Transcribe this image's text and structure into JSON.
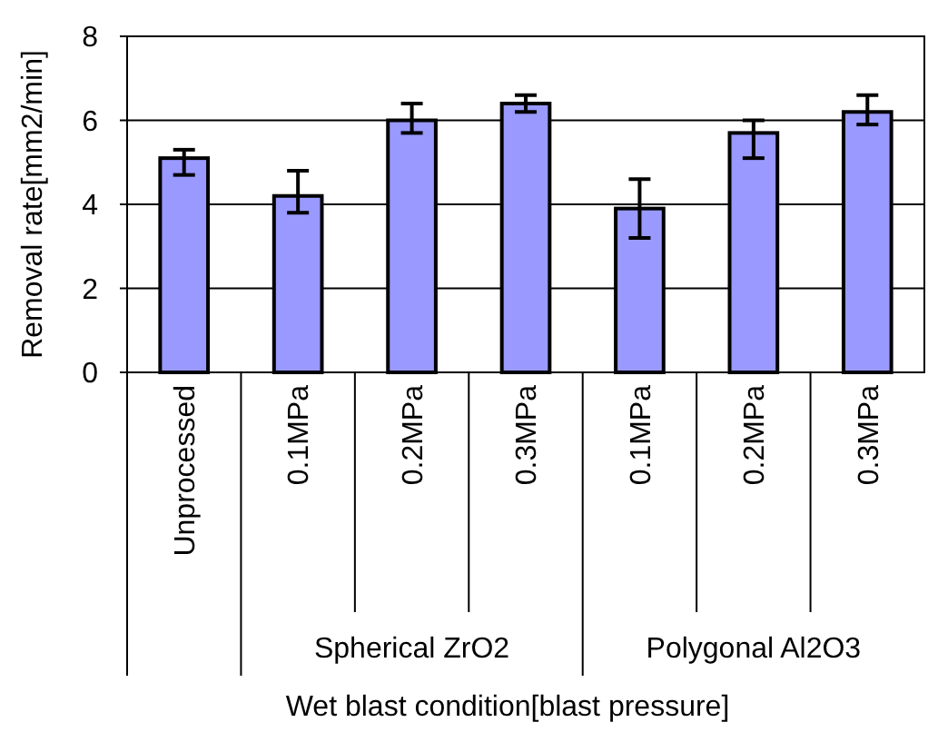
{
  "chart_data": {
    "type": "bar",
    "xlabel": "Wet blast condition[blast pressure]",
    "ylabel": "Removal rate[mm2/min]",
    "categories": [
      "Unprocessed",
      "0.1MPa",
      "0.2MPa",
      "0.3MPa",
      "0.1MPa",
      "0.2MPa",
      "0.3MPa"
    ],
    "values": [
      5.1,
      4.2,
      6.0,
      6.4,
      3.9,
      5.7,
      6.2
    ],
    "errors": [
      [
        4.7,
        5.3
      ],
      [
        3.8,
        4.8
      ],
      [
        5.7,
        6.4
      ],
      [
        6.2,
        6.6
      ],
      [
        3.2,
        4.6
      ],
      [
        5.1,
        6.0
      ],
      [
        5.9,
        6.6
      ]
    ],
    "color": "#9999ff",
    "ylim": [
      0,
      8
    ],
    "yticks": [
      0,
      2,
      4,
      6,
      8
    ],
    "grid": "y",
    "annotations": [
      "Spherical ZrO2",
      "Polygonal Al2O3"
    ]
  }
}
